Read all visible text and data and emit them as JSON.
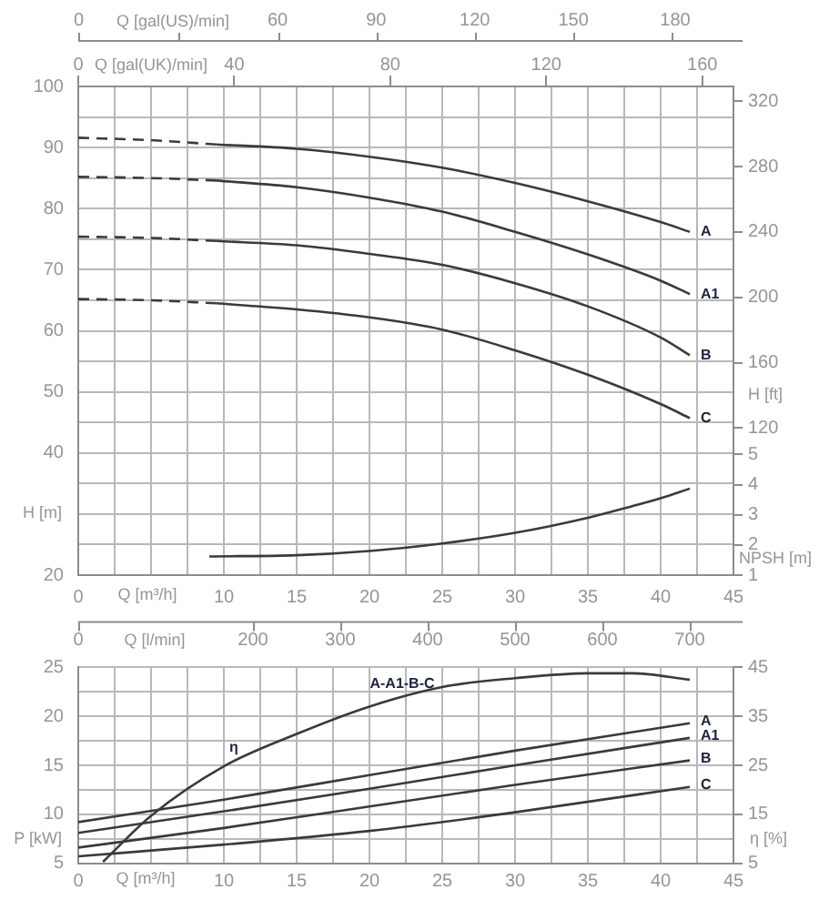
{
  "chart_data": [
    {
      "type": "other",
      "annotations": [
        "0",
        "Q [gal(US)/min]",
        "60",
        "90",
        "120",
        "150",
        "180"
      ]
    },
    {
      "type": "line",
      "xlabel": "Q [m³/h]",
      "ylabel": "H [m]",
      "y2label": "H [ft]",
      "y3label": "NPSH [m]",
      "x2label": "Q [gal(UK)/min]",
      "xlim": [
        0,
        45
      ],
      "xticks": [
        0,
        {
          "value": 2.5,
          "label": null
        },
        {
          "value": 5,
          "label": null
        },
        {
          "value": 7.5,
          "label": null
        },
        10,
        {
          "value": 12.5,
          "label": null
        },
        15,
        {
          "value": 17.5,
          "label": null
        },
        20,
        {
          "value": 22.5,
          "label": null
        },
        25,
        {
          "value": 27.5,
          "label": null
        },
        30,
        {
          "value": 32.5,
          "label": null
        },
        35,
        {
          "value": 37.5,
          "label": null
        },
        40,
        {
          "value": 42.5,
          "label": null
        },
        45
      ],
      "ylim": [
        20,
        100
      ],
      "yticks": [
        20,
        {
          "value": 25,
          "label": null
        },
        {
          "value": 30,
          "label": null
        },
        {
          "value": 35,
          "label": null
        },
        40,
        {
          "value": 45,
          "label": null
        },
        50,
        {
          "value": 55,
          "label": null
        },
        60,
        {
          "value": 65,
          "label": null
        },
        70,
        {
          "value": 75,
          "label": null
        },
        80,
        {
          "value": 85,
          "label": null
        },
        90,
        {
          "value": 95,
          "label": null
        },
        100
      ],
      "x2lim": [
        0,
        168
      ],
      "x2ticks": [
        0,
        40,
        80,
        120,
        160
      ],
      "y2lim": [
        30,
        329
      ],
      "y2ticks": [
        120,
        160,
        200,
        240,
        280,
        320
      ],
      "y3lim": [
        1,
        17.2
      ],
      "y3ticks": [
        1,
        2,
        3,
        4,
        5
      ],
      "grid": true,
      "legend": false,
      "marker": "none",
      "series": [
        {
          "color": "#3a3a3a",
          "line_style": "dashed",
          "x": [
            0,
            5,
            9.5
          ],
          "values": [
            91.6,
            91.2,
            90.5
          ]
        },
        {
          "name": "A",
          "color": "#3a3a3a",
          "line_style": "solid",
          "x": [
            9.5,
            15,
            20,
            25,
            30,
            35,
            40,
            42
          ],
          "values": [
            90.5,
            89.8,
            88.5,
            86.7,
            84.2,
            81.2,
            77.8,
            76.2
          ]
        },
        {
          "color": "#3a3a3a",
          "line_style": "dashed",
          "x": [
            0,
            5,
            9.5
          ],
          "values": [
            85.2,
            85.0,
            84.6
          ]
        },
        {
          "name": "A1",
          "color": "#3a3a3a",
          "line_style": "solid",
          "x": [
            9.5,
            15,
            20,
            25,
            30,
            35,
            40,
            42
          ],
          "values": [
            84.6,
            83.5,
            81.8,
            79.5,
            76.2,
            72.5,
            68.2,
            66.0
          ]
        },
        {
          "color": "#3a3a3a",
          "line_style": "dashed",
          "x": [
            0,
            5,
            9.5
          ],
          "values": [
            75.4,
            75.2,
            74.7
          ]
        },
        {
          "name": "B",
          "color": "#3a3a3a",
          "line_style": "solid",
          "x": [
            9.5,
            15,
            20,
            25,
            30,
            35,
            40,
            42
          ],
          "values": [
            74.7,
            74.0,
            72.6,
            70.8,
            67.8,
            64.0,
            58.9,
            56.0
          ]
        },
        {
          "color": "#3a3a3a",
          "line_style": "dashed",
          "x": [
            0,
            5,
            9.5
          ],
          "values": [
            65.2,
            65.0,
            64.5
          ]
        },
        {
          "name": "C",
          "color": "#3a3a3a",
          "line_style": "solid",
          "x": [
            9.5,
            15,
            20,
            25,
            30,
            35,
            40,
            42
          ],
          "values": [
            64.5,
            63.5,
            62.2,
            60.2,
            56.8,
            52.8,
            48.0,
            45.7
          ]
        },
        {
          "color": "#3a3a3a",
          "line_style": "solid",
          "axis": "y3",
          "x": [
            9,
            15,
            20,
            25,
            30,
            35,
            38,
            40,
            42
          ],
          "values": [
            1.62,
            1.66,
            1.8,
            2.05,
            2.4,
            2.9,
            3.28,
            3.55,
            3.87
          ]
        }
      ]
    },
    {
      "type": "line",
      "xlabel": "Q [m³/h]",
      "x2label": "Q [l/min]",
      "ylabel": "P [kW]",
      "y2label": "η [%]",
      "xlim": [
        0,
        45
      ],
      "xticks": [
        0,
        {
          "value": 2.5,
          "label": null
        },
        {
          "value": 5,
          "label": null
        },
        {
          "value": 7.5,
          "label": null
        },
        10,
        {
          "value": 12.5,
          "label": null
        },
        15,
        {
          "value": 17.5,
          "label": null
        },
        20,
        {
          "value": 22.5,
          "label": null
        },
        25,
        {
          "value": 27.5,
          "label": null
        },
        30,
        {
          "value": 32.5,
          "label": null
        },
        35,
        {
          "value": 37.5,
          "label": null
        },
        40,
        {
          "value": 42.5,
          "label": null
        },
        45
      ],
      "x2lim": [
        0,
        750
      ],
      "x2ticks": [
        0,
        200,
        300,
        400,
        500,
        600,
        700
      ],
      "ylim": [
        5,
        25
      ],
      "yticks": [
        5,
        {
          "value": 7.5,
          "label": null
        },
        10,
        {
          "value": 12.5,
          "label": null
        },
        15,
        {
          "value": 17.5,
          "label": null
        },
        20,
        {
          "value": 22.5,
          "label": null
        },
        25
      ],
      "y2lim": [
        5,
        45
      ],
      "y2ticks": [
        5,
        15,
        25,
        35,
        45
      ],
      "grid": true,
      "legend": false,
      "marker": "none",
      "annotations": [
        "A-A1-B-C"
      ],
      "series": [
        {
          "name": "A",
          "color": "#3a3a3a",
          "line_style": "solid",
          "x": [
            0,
            10,
            20,
            30,
            42
          ],
          "values": [
            9.2,
            11.5,
            14.0,
            16.5,
            19.3
          ]
        },
        {
          "name": "A1",
          "color": "#3a3a3a",
          "line_style": "solid",
          "x": [
            0,
            10,
            20,
            30,
            42
          ],
          "values": [
            8.1,
            10.3,
            12.6,
            15.0,
            17.8
          ]
        },
        {
          "name": "B",
          "color": "#3a3a3a",
          "line_style": "solid",
          "x": [
            0,
            10,
            20,
            30,
            42
          ],
          "values": [
            6.6,
            8.6,
            10.8,
            13.0,
            15.5
          ]
        },
        {
          "name": "C",
          "color": "#3a3a3a",
          "line_style": "solid",
          "x": [
            0,
            10,
            20,
            30,
            42
          ],
          "values": [
            5.7,
            6.9,
            8.3,
            10.2,
            12.8
          ]
        },
        {
          "name": "η",
          "color": "#3a3a3a",
          "line_style": "solid",
          "axis": "y2",
          "x": [
            1.7,
            5,
            10,
            15,
            20,
            25,
            30,
            35,
            38,
            42
          ],
          "values": [
            5.3,
            14.7,
            24.8,
            31.4,
            37.0,
            41.0,
            42.8,
            43.8,
            43.8,
            42.5
          ]
        }
      ]
    }
  ]
}
